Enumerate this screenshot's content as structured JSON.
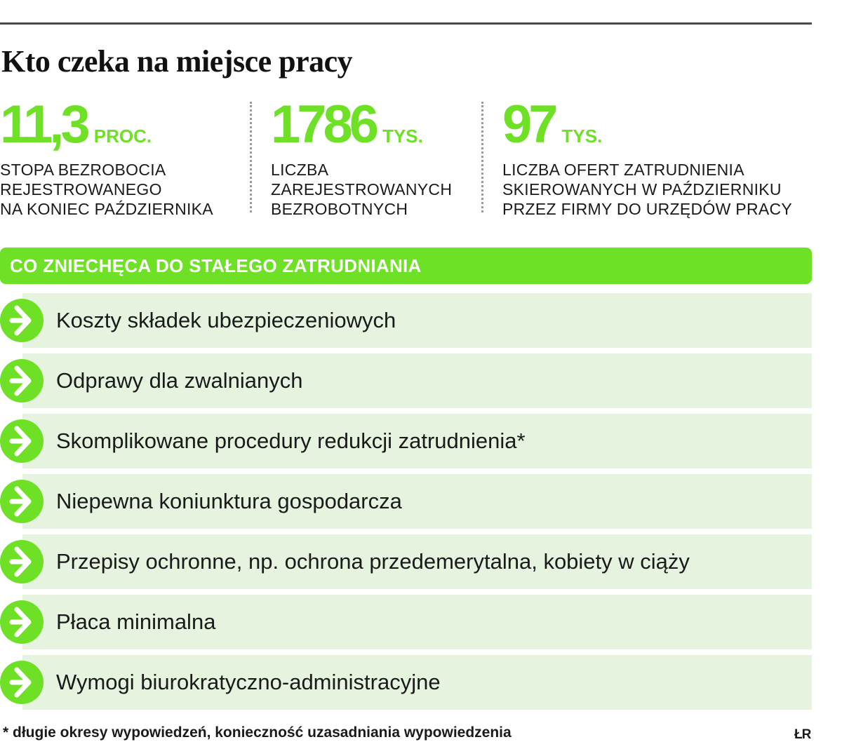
{
  "title": "Kto czeka na miejsce pracy",
  "stats": [
    {
      "value": "11,3",
      "unit": "PROC.",
      "desc_lines": [
        "STOPA BEZROBOCIA",
        "REJESTROWANEGO",
        "NA KONIEC PAŹDZIERNIKA"
      ]
    },
    {
      "value": "1786",
      "unit": "TYS.",
      "desc_lines": [
        "LICZBA",
        "ZAREJESTROWANYCH",
        "BEZROBOTNYCH"
      ]
    },
    {
      "value": "97",
      "unit": "TYS.",
      "desc_lines": [
        "LICZBA OFERT ZATRUDNIENIA",
        "SKIEROWANYCH W PAŹDZIERNIKU",
        "PRZEZ FIRMY DO URZĘDÓW PRACY"
      ]
    }
  ],
  "section_header": "CO ZNIECHĘCA DO STAŁEGO ZATRUDNIANIA",
  "items": [
    "Koszty składek ubezpieczeniowych",
    "Odprawy dla zwalnianych",
    "Skomplikowane procedury redukcji zatrudnienia*",
    "Niepewna koniunktura gospodarcza",
    "Przepisy ochronne, np. ochrona przedemerytalna, kobiety w ciąży",
    "Płaca minimalna",
    "Wymogi biurokratyczno-administracyjne"
  ],
  "footnote": "* długie okresy wypowiedzeń, konieczność uzasadniania wypowiedzenia",
  "source_logo": "ŁR",
  "colors": {
    "accent": "#6ee026",
    "row_background": "#e6f4df",
    "text": "#1a1a1a",
    "rule": "#4a4a4a"
  },
  "icons": {
    "list_marker": "arrow-right-circle-icon"
  }
}
